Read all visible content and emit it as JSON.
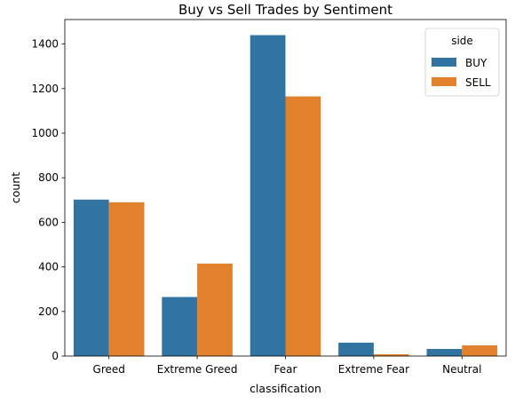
{
  "chart_data": {
    "type": "bar",
    "title": "Buy vs Sell Trades by Sentiment",
    "xlabel": "classification",
    "ylabel": "count",
    "categories": [
      "Greed",
      "Extreme Greed",
      "Fear",
      "Extreme Fear",
      "Neutral"
    ],
    "series": [
      {
        "name": "BUY",
        "color": "#3274a1",
        "values": [
          702,
          265,
          1440,
          60,
          32
        ]
      },
      {
        "name": "SELL",
        "color": "#e1812c",
        "values": [
          690,
          415,
          1165,
          8,
          48
        ]
      }
    ],
    "ylim": [
      0,
      1510
    ],
    "yticks": [
      0,
      200,
      400,
      600,
      800,
      1000,
      1200,
      1400
    ],
    "legend": {
      "title": "side",
      "placement": "top-right"
    },
    "grid": false
  }
}
